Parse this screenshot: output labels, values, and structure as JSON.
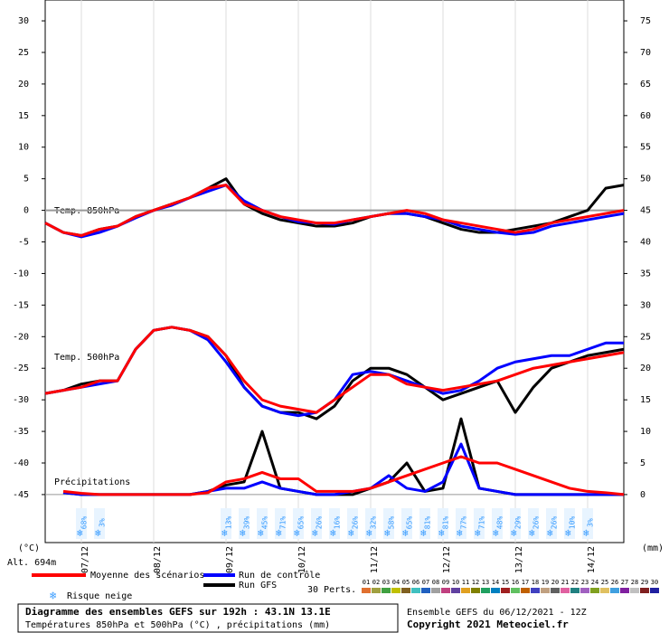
{
  "chart_data": {
    "type": "line",
    "title": "Diagramme des ensembles GEFS sur 192h : 43.1N 13.1E",
    "subtitle": "Températures 850hPa et 500hPa (°C) , précipitations (mm)",
    "run_label": "Ensemble GEFS du 06/12/2021 - 12Z",
    "copyright": "Copyright 2021 Meteociel.fr",
    "ylabel": "(°C)",
    "y2label": "(mm)",
    "altitude": "Alt. 694m",
    "group_labels": [
      "Temp. 850hPa",
      "Temp. 500hPa",
      "Précipitations"
    ],
    "snow_legend": "Risque neige",
    "perts_label": "30 Perts.",
    "xlim": [
      0,
      192
    ],
    "xticks": [
      {
        "value": 12,
        "label": "07/12"
      },
      {
        "value": 36,
        "label": "08/12"
      },
      {
        "value": 60,
        "label": "09/12"
      },
      {
        "value": 84,
        "label": "10/12"
      },
      {
        "value": 108,
        "label": "11/12"
      },
      {
        "value": 132,
        "label": "12/12"
      },
      {
        "value": 156,
        "label": "13/12"
      },
      {
        "value": 180,
        "label": "14/12"
      }
    ],
    "ylim": [
      -52.6,
      33.3
    ],
    "yticks": [
      30,
      25,
      20,
      15,
      10,
      5,
      0,
      -5,
      -10,
      -15,
      -20,
      -25,
      -30,
      -35,
      -40,
      -45
    ],
    "y2lim": [
      -7.6,
      78.3
    ],
    "y2ticks": [
      75,
      70,
      65,
      60,
      55,
      50,
      45,
      40,
      35,
      30,
      25,
      20,
      15,
      10,
      5,
      0
    ],
    "x": [
      0,
      6,
      12,
      18,
      24,
      30,
      36,
      42,
      48,
      54,
      60,
      66,
      72,
      78,
      84,
      90,
      96,
      102,
      108,
      114,
      120,
      126,
      132,
      138,
      144,
      150,
      156,
      162,
      168,
      174,
      180,
      186,
      192
    ],
    "series": [
      {
        "name": "Moyenne des scénarios",
        "color": "#ff0000",
        "values": [
          -2,
          -3.5,
          -4,
          -3,
          -2.5,
          -1,
          0,
          1,
          2,
          3.5,
          4,
          1,
          0,
          -1,
          -1.5,
          -2,
          -2,
          -1.5,
          -1,
          -0.5,
          0,
          -0.5,
          -1.5,
          -2,
          -2.5,
          -3,
          -3.5,
          -3,
          -2,
          -1.5,
          -1,
          -0.5,
          0
        ]
      },
      {
        "name": "Run de contrôle",
        "color": "#0000ff",
        "values": [
          -2,
          -3.5,
          -4.2,
          -3.5,
          -2.5,
          -1.2,
          0,
          0.8,
          2,
          3,
          4,
          1.5,
          0,
          -1,
          -1.8,
          -2,
          -2.2,
          -1.5,
          -1,
          -0.5,
          -0.5,
          -1,
          -1.5,
          -2.5,
          -3,
          -3.5,
          -3.8,
          -3.5,
          -2.5,
          -2,
          -1.5,
          -1,
          -0.5
        ]
      },
      {
        "name": "Run GFS",
        "color": "#000000",
        "values": [
          -2,
          -3.5,
          -4,
          -3,
          -2.5,
          -1,
          0,
          1,
          2,
          3.5,
          5,
          1,
          -0.5,
          -1.5,
          -2,
          -2.5,
          -2.5,
          -2,
          -1,
          -0.5,
          -0.5,
          -1,
          -2,
          -3,
          -3.5,
          -3.5,
          -3,
          -2.5,
          -2,
          -1,
          0,
          3.5,
          4
        ]
      },
      {
        "color": "#ff0000",
        "values": [
          -29,
          -28.5,
          -28,
          -27,
          -27,
          -22,
          -19,
          -18.5,
          -19,
          -20,
          -23,
          -27,
          -30,
          -31,
          -31.5,
          -32,
          -30,
          -28,
          -26,
          -26,
          -27.5,
          -28,
          -28.5,
          -28,
          -27.5,
          -27,
          -26,
          -25,
          -24.5,
          -24,
          -23.5,
          -23,
          -22.5
        ]
      },
      {
        "color": "#0000ff",
        "values": [
          -29,
          -28.5,
          -28,
          -27.5,
          -27,
          -22,
          -19,
          -18.5,
          -19,
          -20.5,
          -24,
          -28,
          -31,
          -32,
          -32.5,
          -32,
          -30,
          -26,
          -25.5,
          -26,
          -27,
          -28,
          -29,
          -28.5,
          -27,
          -25,
          -24,
          -23.5,
          -23,
          -23,
          -22,
          -21,
          -21
        ]
      },
      {
        "color": "#000000",
        "values": [
          -29,
          -28.5,
          -27.5,
          -27,
          -27,
          -22,
          -19,
          -18.5,
          -19,
          -20,
          -23,
          -28,
          -31,
          -32,
          -32,
          -33,
          -31,
          -27,
          -25,
          -25,
          -26,
          -28,
          -30,
          -29,
          -28,
          -27,
          -32,
          -28,
          -25,
          -24,
          -23,
          -22.5,
          -22
        ]
      },
      {
        "color": "#ff0000",
        "axis": "y2",
        "values": [
          null,
          0.5,
          0.2,
          0,
          0,
          0,
          0,
          0,
          0,
          0.3,
          2,
          2.5,
          3.5,
          2.5,
          2.5,
          0.5,
          0.5,
          0.5,
          1,
          2,
          3,
          4,
          5,
          6,
          5,
          5,
          4,
          3,
          2,
          1,
          0.5,
          0.3,
          0
        ]
      },
      {
        "color": "#0000ff",
        "axis": "y2",
        "values": [
          null,
          0.3,
          0,
          0,
          0,
          0,
          0,
          0,
          0,
          0.5,
          1,
          1,
          2,
          1,
          0.5,
          0,
          0,
          0.5,
          1,
          3,
          1,
          0.5,
          2,
          8,
          1,
          0.5,
          0,
          0,
          0,
          0,
          0,
          0,
          0
        ]
      },
      {
        "color": "#000000",
        "axis": "y2",
        "values": [
          null,
          0.3,
          0,
          0,
          0,
          0,
          0,
          0,
          0,
          0.5,
          1.5,
          2,
          10,
          1,
          0.5,
          0,
          0,
          0,
          1,
          2,
          5,
          0.5,
          1,
          12,
          1,
          0.5,
          0,
          0,
          0,
          0,
          0,
          0,
          0
        ]
      }
    ],
    "snow_x": [
      12,
      18,
      60,
      66,
      72,
      78,
      84,
      90,
      96,
      102,
      108,
      114,
      120,
      126,
      132,
      138,
      144,
      150,
      156,
      162,
      168,
      174,
      180
    ],
    "snow_labels": [
      "68%",
      "3%",
      "13%",
      "39%",
      "45%",
      "71%",
      "65%",
      "26%",
      "16%",
      "26%",
      "32%",
      "58%",
      "65%",
      "81%",
      "81%",
      "77%",
      "71%",
      "48%",
      "29%",
      "26%",
      "26%",
      "10%",
      "3%"
    ],
    "pert_names": [
      "01",
      "02",
      "03",
      "04",
      "05",
      "06",
      "07",
      "08",
      "09",
      "10",
      "11",
      "12",
      "13",
      "14",
      "15",
      "16",
      "17",
      "18",
      "19",
      "20",
      "21",
      "22",
      "23",
      "24",
      "25",
      "26",
      "27",
      "28",
      "29",
      "30"
    ],
    "pert_colors": [
      "#e07030",
      "#a0a040",
      "#40a040",
      "#c0c000",
      "#806020",
      "#40c0c0",
      "#2060c0",
      "#a0a0a0",
      "#c04080",
      "#6040a0",
      "#e0a020",
      "#808000",
      "#20a060",
      "#0080c0",
      "#a02020",
      "#60c060",
      "#c06000",
      "#4040c0",
      "#c0a080",
      "#606060",
      "#e060a0",
      "#208080",
      "#a060c0",
      "#80a020",
      "#e0c060",
      "#40a0e0",
      "#8020a0",
      "#c0c0c0",
      "#802020",
      "#2020a0"
    ]
  }
}
